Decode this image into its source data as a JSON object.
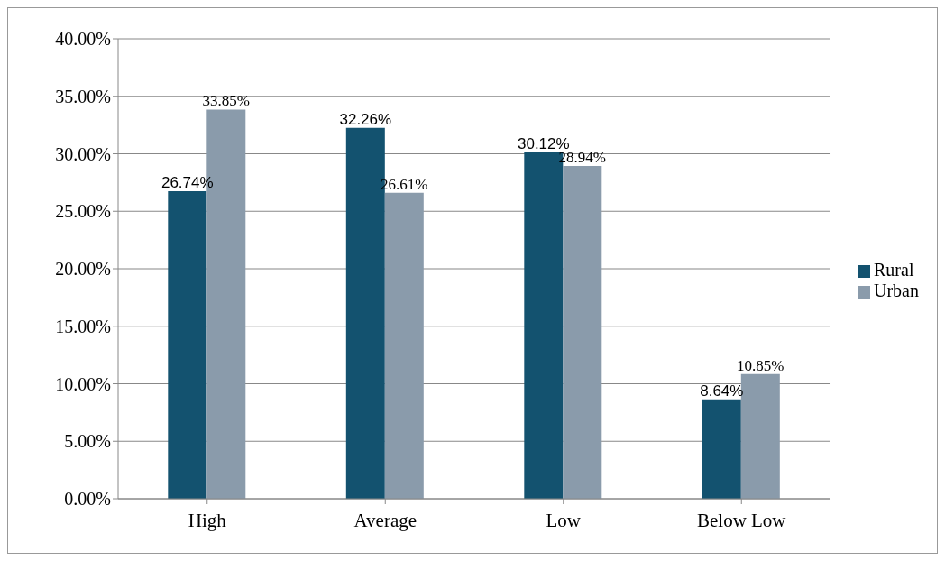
{
  "chart_data": {
    "type": "bar",
    "categories": [
      "High",
      "Average",
      "Low",
      "Below Low"
    ],
    "series": [
      {
        "name": "Rural",
        "color": "#13526f",
        "values": [
          26.74,
          32.26,
          30.12,
          8.64
        ],
        "value_labels": [
          "26.74%",
          "32.26%",
          "30.12%",
          "8.64%"
        ]
      },
      {
        "name": "Urban",
        "color": "#8a9bab",
        "values": [
          33.85,
          26.61,
          28.94,
          10.85
        ],
        "value_labels": [
          "33.85%",
          "26.61%",
          "28.94%",
          "10.85%"
        ]
      }
    ],
    "ylim": [
      0,
      40
    ],
    "yticks": [
      {
        "value": 0,
        "label": "0.00%"
      },
      {
        "value": 5,
        "label": "5.00%"
      },
      {
        "value": 10,
        "label": "10.00%"
      },
      {
        "value": 15,
        "label": "15.00%"
      },
      {
        "value": 20,
        "label": "20.00%"
      },
      {
        "value": 25,
        "label": "25.00%"
      },
      {
        "value": 30,
        "label": "30.00%"
      },
      {
        "value": 35,
        "label": "35.00%"
      },
      {
        "value": 40,
        "label": "40.00%"
      }
    ],
    "grid": "y",
    "legend": "right"
  }
}
